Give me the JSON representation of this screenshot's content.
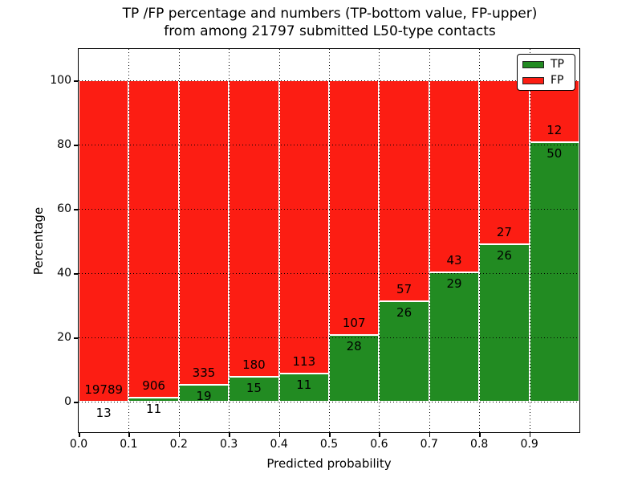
{
  "figure": {
    "title_line1": "TP /FP percentage and numbers (TP-bottom value, FP-upper)",
    "title_line2": "from among 21797 submitted L50-type contacts"
  },
  "legend": {
    "position": "upper right",
    "items": [
      {
        "label": "TP",
        "color": "#228b22"
      },
      {
        "label": "FP",
        "color": "#fc1d13"
      }
    ]
  },
  "chart_data": {
    "type": "bar",
    "stacked": true,
    "orientation": "vertical",
    "title": "TP /FP percentage and numbers (TP-bottom value, FP-upper) from among 21797 submitted L50-type contacts",
    "total_submitted_contacts": 21797,
    "xlabel": "Predicted probability",
    "ylabel": "Percentage",
    "x_tick_labels": [
      "0.0",
      "0.1",
      "0.2",
      "0.3",
      "0.4",
      "0.5",
      "0.6",
      "0.7",
      "0.8",
      "0.9"
    ],
    "x_tick_values": [
      0.0,
      0.1,
      0.2,
      0.3,
      0.4,
      0.5,
      0.6,
      0.7,
      0.8,
      0.9
    ],
    "y_tick_values": [
      0,
      20,
      40,
      60,
      80,
      100
    ],
    "xlim": [
      0.0,
      1.0
    ],
    "ylim": [
      -9.5,
      109.75
    ],
    "bin_width": 0.1,
    "grid": {
      "style": "dotted",
      "color": "#000000",
      "x_lines": [
        0.1,
        0.2,
        0.3,
        0.4,
        0.5,
        0.6,
        0.7,
        0.8,
        0.9
      ],
      "y_lines": [
        0,
        20,
        40,
        60,
        80,
        100
      ]
    },
    "series_colors": {
      "TP": "#228b22",
      "FP": "#fc1d13"
    },
    "bar_edge_color": "#ffffff",
    "label_note": "TP count printed below the TP/FP boundary, FP count printed above it",
    "bins": [
      {
        "x_start": 0.0,
        "x_end": 0.1,
        "tp_count": 13,
        "fp_count": 19789,
        "tp_pct": 0.07,
        "fp_pct": 99.93
      },
      {
        "x_start": 0.1,
        "x_end": 0.2,
        "tp_count": 11,
        "fp_count": 906,
        "tp_pct": 1.2,
        "fp_pct": 98.8
      },
      {
        "x_start": 0.2,
        "x_end": 0.3,
        "tp_count": 19,
        "fp_count": 335,
        "tp_pct": 5.37,
        "fp_pct": 94.63
      },
      {
        "x_start": 0.3,
        "x_end": 0.4,
        "tp_count": 15,
        "fp_count": 180,
        "tp_pct": 7.69,
        "fp_pct": 92.31
      },
      {
        "x_start": 0.4,
        "x_end": 0.5,
        "tp_count": 11,
        "fp_count": 113,
        "tp_pct": 8.87,
        "fp_pct": 91.13
      },
      {
        "x_start": 0.5,
        "x_end": 0.6,
        "tp_count": 28,
        "fp_count": 107,
        "tp_pct": 20.74,
        "fp_pct": 79.26
      },
      {
        "x_start": 0.6,
        "x_end": 0.7,
        "tp_count": 26,
        "fp_count": 57,
        "tp_pct": 31.33,
        "fp_pct": 68.67
      },
      {
        "x_start": 0.7,
        "x_end": 0.8,
        "tp_count": 29,
        "fp_count": 43,
        "tp_pct": 40.28,
        "fp_pct": 59.72
      },
      {
        "x_start": 0.8,
        "x_end": 0.9,
        "tp_count": 26,
        "fp_count": 27,
        "tp_pct": 49.06,
        "fp_pct": 50.94
      },
      {
        "x_start": 0.9,
        "x_end": 1.0,
        "tp_count": 50,
        "fp_count": 12,
        "tp_pct": 80.65,
        "fp_pct": 19.35
      }
    ],
    "legend_entries": [
      "TP",
      "FP"
    ],
    "legend_position": "upper right"
  }
}
